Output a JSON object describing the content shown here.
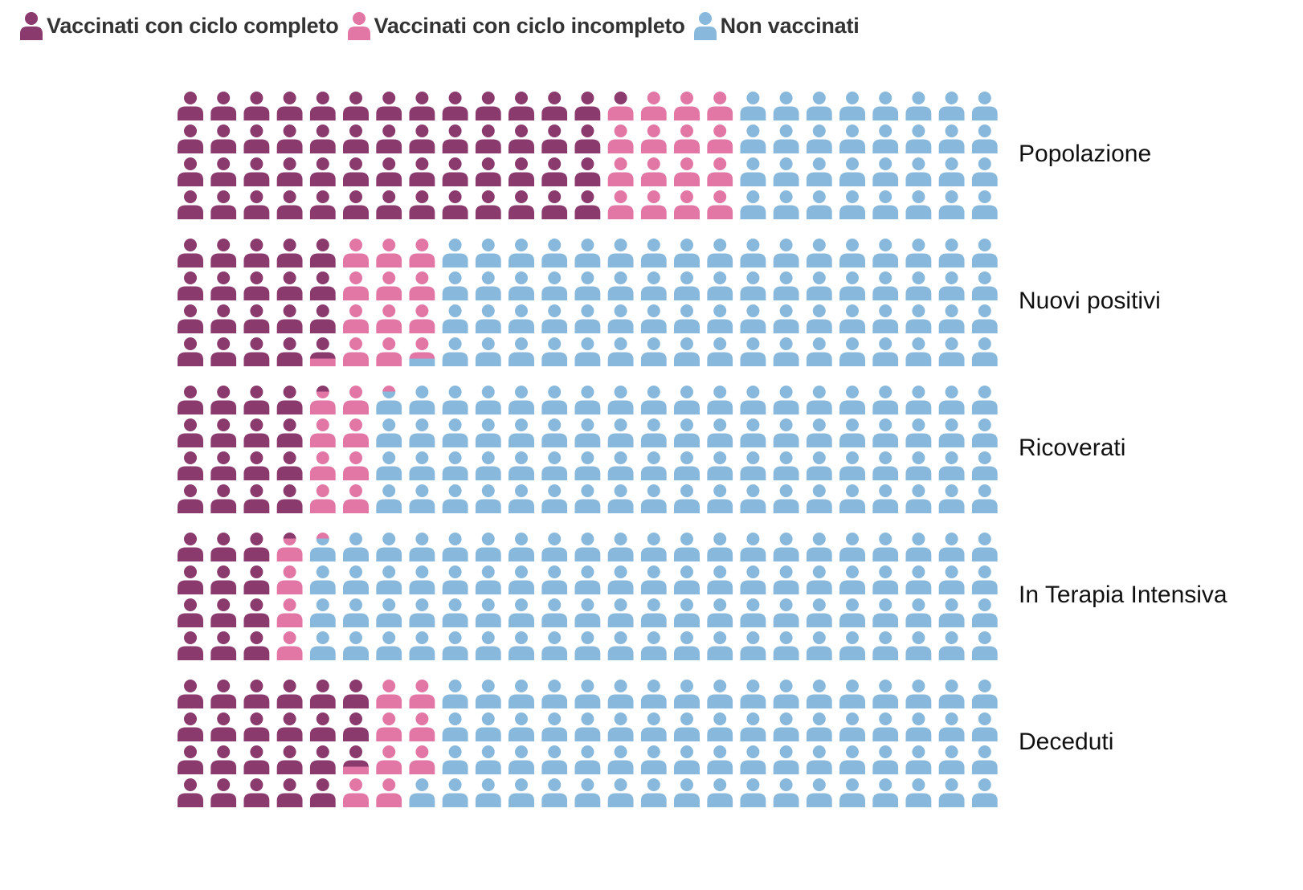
{
  "legend": [
    {
      "label": "Vaccinati con ciclo completo",
      "color": "#8b3a6e"
    },
    {
      "label": "Vaccinati con ciclo incompleto",
      "color": "#e277a6"
    },
    {
      "label": "Non vaccinati",
      "color": "#88b9dd"
    }
  ],
  "chart_data": {
    "type": "waffle",
    "units_per_row": 100,
    "grid": {
      "rows": 4,
      "columns": 25
    },
    "series": [
      "Vaccinati con ciclo completo",
      "Vaccinati con ciclo incompleto",
      "Non vaccinati"
    ],
    "colors": [
      "#8b3a6e",
      "#e277a6",
      "#88b9dd"
    ],
    "categories": [
      "Popolazione",
      "Nuovi positivi",
      "Ricoverati",
      "In Terapia Intensiva",
      "Deceduti"
    ],
    "values": [
      [
        52.5,
        15.5,
        32.0
      ],
      [
        19.75,
        12.0,
        68.25
      ],
      [
        16.25,
        8.0,
        75.75
      ],
      [
        12.25,
        4.0,
        83.75
      ],
      [
        22.75,
        8.25,
        69.0
      ]
    ]
  }
}
